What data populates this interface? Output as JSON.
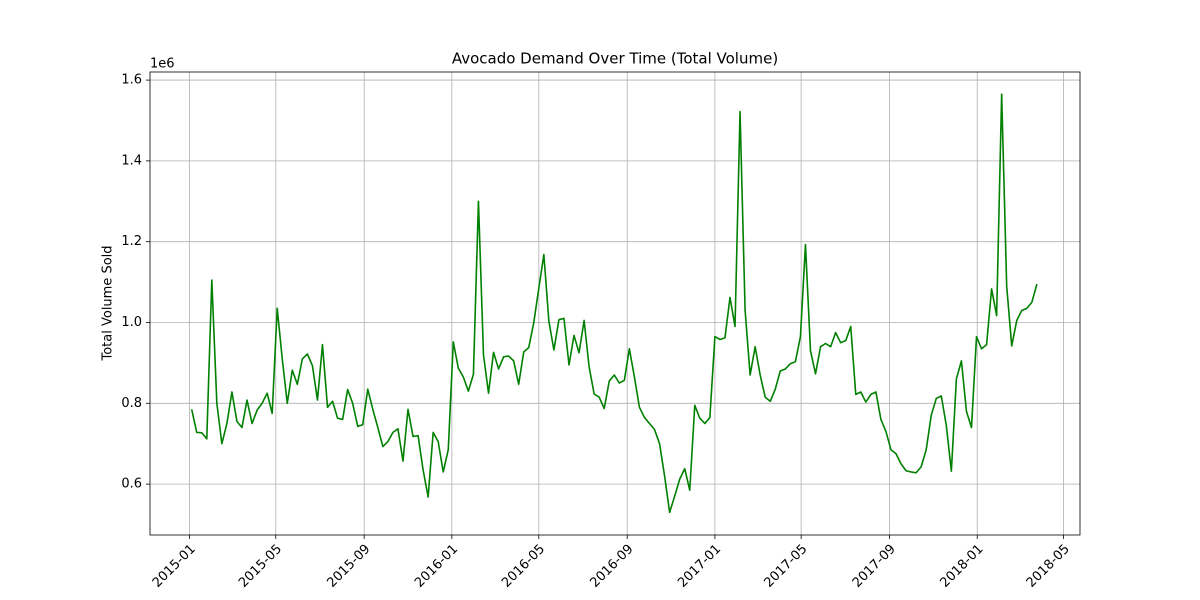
{
  "chart_data": {
    "type": "line",
    "title": "Avocado Demand Over Time (Total Volume)",
    "ylabel": "Total Volume Sold",
    "y_offset_label": "1e6",
    "color": "#008000",
    "grid": true,
    "x": [
      "2015-01-04",
      "2015-01-11",
      "2015-01-18",
      "2015-01-25",
      "2015-02-01",
      "2015-02-08",
      "2015-02-15",
      "2015-02-22",
      "2015-03-01",
      "2015-03-08",
      "2015-03-15",
      "2015-03-22",
      "2015-03-29",
      "2015-04-05",
      "2015-04-12",
      "2015-04-19",
      "2015-04-26",
      "2015-05-03",
      "2015-05-10",
      "2015-05-17",
      "2015-05-24",
      "2015-05-31",
      "2015-06-07",
      "2015-06-14",
      "2015-06-21",
      "2015-06-28",
      "2015-07-05",
      "2015-07-12",
      "2015-07-19",
      "2015-07-26",
      "2015-08-02",
      "2015-08-09",
      "2015-08-16",
      "2015-08-23",
      "2015-08-30",
      "2015-09-06",
      "2015-09-13",
      "2015-09-20",
      "2015-09-27",
      "2015-10-04",
      "2015-10-11",
      "2015-10-18",
      "2015-10-25",
      "2015-11-01",
      "2015-11-08",
      "2015-11-15",
      "2015-11-22",
      "2015-11-29",
      "2015-12-06",
      "2015-12-13",
      "2015-12-20",
      "2015-12-27",
      "2016-01-03",
      "2016-01-10",
      "2016-01-17",
      "2016-01-24",
      "2016-01-31",
      "2016-02-07",
      "2016-02-14",
      "2016-02-21",
      "2016-02-28",
      "2016-03-06",
      "2016-03-13",
      "2016-03-20",
      "2016-03-27",
      "2016-04-03",
      "2016-04-10",
      "2016-04-17",
      "2016-04-24",
      "2016-05-01",
      "2016-05-08",
      "2016-05-15",
      "2016-05-22",
      "2016-05-29",
      "2016-06-05",
      "2016-06-12",
      "2016-06-19",
      "2016-06-26",
      "2016-07-03",
      "2016-07-10",
      "2016-07-17",
      "2016-07-24",
      "2016-07-31",
      "2016-08-07",
      "2016-08-14",
      "2016-08-21",
      "2016-08-28",
      "2016-09-04",
      "2016-09-11",
      "2016-09-18",
      "2016-09-25",
      "2016-10-02",
      "2016-10-09",
      "2016-10-16",
      "2016-10-23",
      "2016-10-30",
      "2016-11-06",
      "2016-11-13",
      "2016-11-20",
      "2016-11-27",
      "2016-12-04",
      "2016-12-11",
      "2016-12-18",
      "2016-12-25",
      "2017-01-01",
      "2017-01-08",
      "2017-01-15",
      "2017-01-22",
      "2017-01-29",
      "2017-02-05",
      "2017-02-12",
      "2017-02-19",
      "2017-02-26",
      "2017-03-05",
      "2017-03-12",
      "2017-03-19",
      "2017-03-26",
      "2017-04-02",
      "2017-04-09",
      "2017-04-16",
      "2017-04-23",
      "2017-04-30",
      "2017-05-07",
      "2017-05-14",
      "2017-05-21",
      "2017-05-28",
      "2017-06-04",
      "2017-06-11",
      "2017-06-18",
      "2017-06-25",
      "2017-07-02",
      "2017-07-09",
      "2017-07-16",
      "2017-07-23",
      "2017-07-30",
      "2017-08-06",
      "2017-08-13",
      "2017-08-20",
      "2017-08-27",
      "2017-09-03",
      "2017-09-10",
      "2017-09-17",
      "2017-09-24",
      "2017-10-01",
      "2017-10-08",
      "2017-10-15",
      "2017-10-22",
      "2017-10-29",
      "2017-11-05",
      "2017-11-12",
      "2017-11-19",
      "2017-11-26",
      "2017-12-03",
      "2017-12-10",
      "2017-12-17",
      "2017-12-24",
      "2017-12-31",
      "2018-01-07",
      "2018-01-14",
      "2018-01-21",
      "2018-01-28",
      "2018-02-04",
      "2018-02-11",
      "2018-02-18",
      "2018-02-25",
      "2018-03-04",
      "2018-03-11",
      "2018-03-18",
      "2018-03-25"
    ],
    "values": [
      0.785,
      0.728,
      0.727,
      0.712,
      1.105,
      0.8,
      0.7,
      0.75,
      0.828,
      0.755,
      0.74,
      0.808,
      0.75,
      0.783,
      0.8,
      0.825,
      0.775,
      1.035,
      0.91,
      0.8,
      0.882,
      0.847,
      0.91,
      0.922,
      0.893,
      0.808,
      0.945,
      0.79,
      0.805,
      0.763,
      0.76,
      0.834,
      0.8,
      0.743,
      0.747,
      0.835,
      0.785,
      0.74,
      0.693,
      0.705,
      0.728,
      0.737,
      0.657,
      0.785,
      0.718,
      0.72,
      0.635,
      0.568,
      0.728,
      0.705,
      0.63,
      0.685,
      0.952,
      0.887,
      0.865,
      0.83,
      0.872,
      1.3,
      0.92,
      0.825,
      0.926,
      0.885,
      0.915,
      0.917,
      0.905,
      0.847,
      0.927,
      0.938,
      1.0,
      1.085,
      1.168,
      1.003,
      0.932,
      1.007,
      1.01,
      0.895,
      0.968,
      0.925,
      1.005,
      0.89,
      0.823,
      0.815,
      0.787,
      0.855,
      0.87,
      0.85,
      0.857,
      0.935,
      0.865,
      0.79,
      0.765,
      0.75,
      0.735,
      0.7,
      0.62,
      0.53,
      0.57,
      0.612,
      0.638,
      0.585,
      0.795,
      0.763,
      0.75,
      0.765,
      0.965,
      0.958,
      0.962,
      1.062,
      0.99,
      1.522,
      1.03,
      0.87,
      0.94,
      0.87,
      0.815,
      0.805,
      0.835,
      0.88,
      0.885,
      0.898,
      0.903,
      0.965,
      1.193,
      0.93,
      0.873,
      0.94,
      0.948,
      0.94,
      0.975,
      0.95,
      0.955,
      0.99,
      0.822,
      0.828,
      0.803,
      0.822,
      0.828,
      0.76,
      0.73,
      0.685,
      0.675,
      0.65,
      0.633,
      0.63,
      0.628,
      0.643,
      0.685,
      0.77,
      0.812,
      0.818,
      0.745,
      0.632,
      0.86,
      0.905,
      0.78,
      0.74,
      0.965,
      0.935,
      0.945,
      1.083,
      1.017,
      1.565,
      1.09,
      0.942,
      1.005,
      1.03,
      1.035,
      1.05,
      1.095
    ],
    "xlim": [
      "2014-11-07",
      "2018-05-24"
    ],
    "xticks": [
      "2015-01",
      "2015-05",
      "2015-09",
      "2016-01",
      "2016-05",
      "2016-09",
      "2017-01",
      "2017-05",
      "2017-09",
      "2018-01",
      "2018-05"
    ],
    "ylim": [
      0.474,
      1.62
    ],
    "yticks": [
      0.6,
      0.8,
      {
        "value": 1,
        "label": "1.0"
      },
      1.2,
      1.4,
      1.6
    ]
  }
}
